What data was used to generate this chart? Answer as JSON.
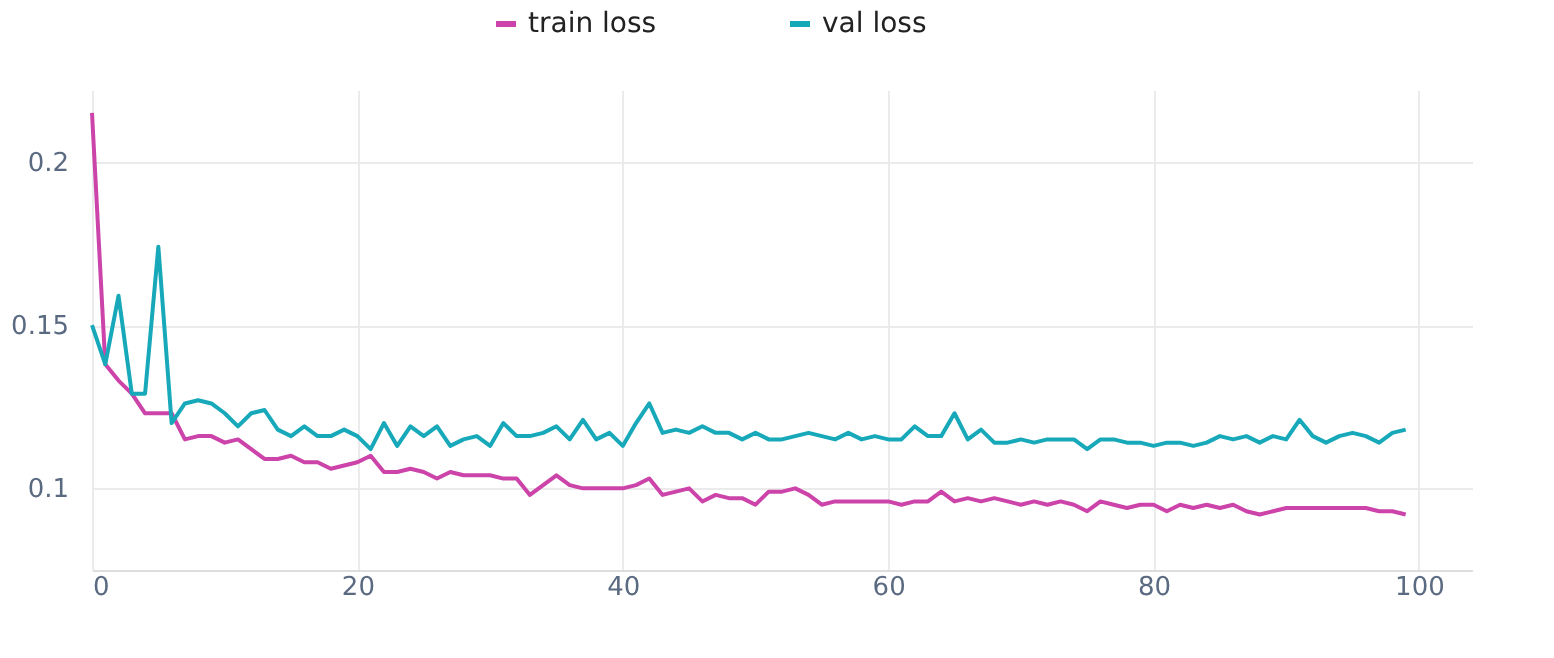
{
  "chart_data": {
    "type": "line",
    "x": [
      0,
      1,
      2,
      3,
      4,
      5,
      6,
      7,
      8,
      9,
      10,
      11,
      12,
      13,
      14,
      15,
      16,
      17,
      18,
      19,
      20,
      21,
      22,
      23,
      24,
      25,
      26,
      27,
      28,
      29,
      30,
      31,
      32,
      33,
      34,
      35,
      36,
      37,
      38,
      39,
      40,
      41,
      42,
      43,
      44,
      45,
      46,
      47,
      48,
      49,
      50,
      51,
      52,
      53,
      54,
      55,
      56,
      57,
      58,
      59,
      60,
      61,
      62,
      63,
      64,
      65,
      66,
      67,
      68,
      69,
      70,
      71,
      72,
      73,
      74,
      75,
      76,
      77,
      78,
      79,
      80,
      81,
      82,
      83,
      84,
      85,
      86,
      87,
      88,
      89,
      90,
      91,
      92,
      93,
      94,
      95,
      96,
      97,
      98,
      99
    ],
    "series": [
      {
        "name": "train loss",
        "color": "#cc44aa",
        "values": [
          0.215,
          0.138,
          0.133,
          0.129,
          0.123,
          0.123,
          0.123,
          0.115,
          0.116,
          0.116,
          0.114,
          0.115,
          0.112,
          0.109,
          0.109,
          0.11,
          0.108,
          0.108,
          0.106,
          0.107,
          0.108,
          0.11,
          0.105,
          0.105,
          0.106,
          0.105,
          0.103,
          0.105,
          0.104,
          0.104,
          0.104,
          0.103,
          0.103,
          0.098,
          0.101,
          0.104,
          0.101,
          0.1,
          0.1,
          0.1,
          0.1,
          0.101,
          0.103,
          0.098,
          0.099,
          0.1,
          0.096,
          0.098,
          0.097,
          0.097,
          0.095,
          0.099,
          0.099,
          0.1,
          0.098,
          0.095,
          0.096,
          0.096,
          0.096,
          0.096,
          0.096,
          0.095,
          0.096,
          0.096,
          0.099,
          0.096,
          0.097,
          0.096,
          0.097,
          0.096,
          0.095,
          0.096,
          0.095,
          0.096,
          0.095,
          0.093,
          0.096,
          0.095,
          0.094,
          0.095,
          0.095,
          0.093,
          0.095,
          0.094,
          0.095,
          0.094,
          0.095,
          0.093,
          0.092,
          0.093,
          0.094,
          0.094,
          0.094,
          0.094,
          0.094,
          0.094,
          0.094,
          0.093,
          0.093,
          0.092
        ]
      },
      {
        "name": "val loss",
        "color": "#17a9b9",
        "values": [
          0.15,
          0.138,
          0.159,
          0.129,
          0.129,
          0.174,
          0.12,
          0.126,
          0.127,
          0.126,
          0.123,
          0.119,
          0.123,
          0.124,
          0.118,
          0.116,
          0.119,
          0.116,
          0.116,
          0.118,
          0.116,
          0.112,
          0.12,
          0.113,
          0.119,
          0.116,
          0.119,
          0.113,
          0.115,
          0.116,
          0.113,
          0.12,
          0.116,
          0.116,
          0.117,
          0.119,
          0.115,
          0.121,
          0.115,
          0.117,
          0.113,
          0.12,
          0.126,
          0.117,
          0.118,
          0.117,
          0.119,
          0.117,
          0.117,
          0.115,
          0.117,
          0.115,
          0.115,
          0.116,
          0.117,
          0.116,
          0.115,
          0.117,
          0.115,
          0.116,
          0.115,
          0.115,
          0.119,
          0.116,
          0.116,
          0.123,
          0.115,
          0.118,
          0.114,
          0.114,
          0.115,
          0.114,
          0.115,
          0.115,
          0.115,
          0.112,
          0.115,
          0.115,
          0.114,
          0.114,
          0.113,
          0.114,
          0.114,
          0.113,
          0.114,
          0.116,
          0.115,
          0.116,
          0.114,
          0.116,
          0.115,
          0.121,
          0.116,
          0.114,
          0.116,
          0.117,
          0.116,
          0.114,
          0.117,
          0.118
        ]
      }
    ],
    "xlim": [
      0,
      104
    ],
    "xticks": [
      0,
      20,
      40,
      60,
      80,
      100
    ],
    "ylim": [
      0.075,
      0.222
    ],
    "yticks": [
      0.1,
      0.15,
      0.2
    ],
    "grid": true,
    "legend": "top",
    "line_style": "solid"
  }
}
